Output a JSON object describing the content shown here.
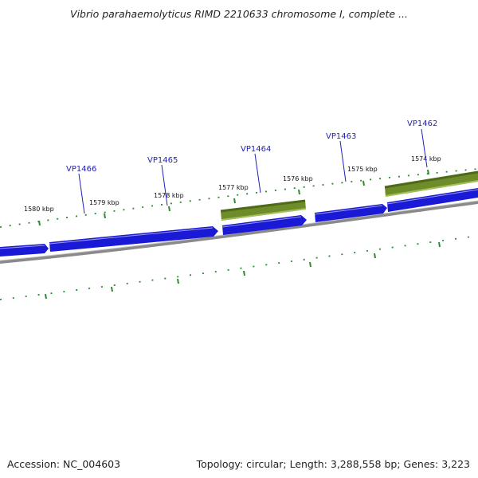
{
  "title": "Vibrio parahaemolyticus RIMD 2210633 chromosome I, complete ...",
  "footer": {
    "accession": "Accession: NC_004603",
    "summary": "Topology: circular; Length: 3,288,558 bp; Genes: 3,223"
  },
  "colors": {
    "forward_gene": "#1a1ad6",
    "reverse_gene": "#6e8c2a",
    "backbone": "#8a8a8a",
    "ticks": "#2e8b2e",
    "locus_label": "#2222bb"
  },
  "ticks": [
    "1580 kbp",
    "1579 kbp",
    "1578 kbp",
    "1577 kbp",
    "1576 kbp",
    "1575 kbp",
    "1574 kbp"
  ],
  "loci": [
    "VP1466",
    "VP1465",
    "VP1464",
    "VP1463",
    "VP1462"
  ]
}
